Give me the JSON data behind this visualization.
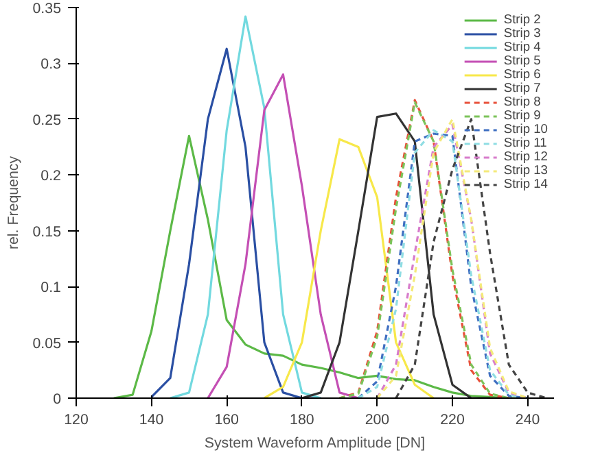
{
  "chart_data": {
    "type": "line",
    "xlabel": "System Waveform Amplitude [DN]",
    "ylabel": "rel. Frequency",
    "xlim": [
      120,
      247
    ],
    "ylim": [
      0,
      0.35
    ],
    "xticks": [
      120,
      140,
      160,
      180,
      200,
      220,
      240
    ],
    "yticks": [
      0,
      0.05,
      0.1,
      0.15,
      0.2,
      0.25,
      0.3,
      0.35
    ],
    "grid": false,
    "legend": "top right",
    "marker": "none",
    "series": [
      {
        "name": "Strip 2",
        "color": "#5cb947",
        "line_style": "solid",
        "x": [
          130,
          135,
          140,
          145,
          150,
          155,
          160,
          165,
          170,
          175,
          180,
          185,
          190,
          195,
          200,
          205,
          210,
          215,
          220,
          225,
          230,
          235,
          240
        ],
        "values": [
          0,
          0.003,
          0.06,
          0.15,
          0.235,
          0.16,
          0.07,
          0.048,
          0.04,
          0.038,
          0.03,
          0.027,
          0.023,
          0.018,
          0.02,
          0.017,
          0.016,
          0.01,
          0.005,
          0.002,
          0.001,
          0,
          0
        ]
      },
      {
        "name": "Strip 3",
        "color": "#2a4fa3",
        "line_style": "solid",
        "x": [
          140,
          145,
          150,
          155,
          160,
          165,
          170,
          175,
          180,
          185
        ],
        "values": [
          0.001,
          0.018,
          0.12,
          0.25,
          0.313,
          0.225,
          0.05,
          0.005,
          0,
          0
        ]
      },
      {
        "name": "Strip 4",
        "color": "#72d9df",
        "line_style": "solid",
        "x": [
          145,
          150,
          155,
          160,
          165,
          170,
          175,
          180,
          185
        ],
        "values": [
          0,
          0.005,
          0.075,
          0.24,
          0.342,
          0.26,
          0.075,
          0.005,
          0
        ]
      },
      {
        "name": "Strip 5",
        "color": "#c44fb4",
        "line_style": "solid",
        "x": [
          155,
          160,
          165,
          170,
          175,
          180,
          185,
          190,
          195
        ],
        "values": [
          0,
          0.028,
          0.12,
          0.258,
          0.29,
          0.19,
          0.075,
          0.005,
          0
        ]
      },
      {
        "name": "Strip 6",
        "color": "#f7e84a",
        "line_style": "solid",
        "x": [
          170,
          175,
          180,
          185,
          190,
          195,
          200,
          205,
          210,
          215
        ],
        "values": [
          0,
          0.01,
          0.05,
          0.15,
          0.232,
          0.225,
          0.18,
          0.05,
          0.012,
          0
        ]
      },
      {
        "name": "Strip 7",
        "color": "#333333",
        "line_style": "solid",
        "x": [
          180,
          185,
          190,
          195,
          200,
          205,
          210,
          215,
          220,
          225,
          230
        ],
        "values": [
          0,
          0.005,
          0.05,
          0.15,
          0.252,
          0.255,
          0.23,
          0.075,
          0.012,
          0,
          0
        ]
      },
      {
        "name": "Strip 8",
        "color": "#e8503a",
        "line_style": "dashed",
        "x": [
          190,
          195,
          200,
          205,
          210,
          215,
          220,
          225,
          230,
          235
        ],
        "values": [
          0,
          0.005,
          0.06,
          0.18,
          0.267,
          0.23,
          0.11,
          0.025,
          0.003,
          0
        ]
      },
      {
        "name": "Strip 9",
        "color": "#7cc35a",
        "line_style": "dashed",
        "x": [
          190,
          195,
          200,
          205,
          210,
          215,
          220,
          225,
          230,
          235
        ],
        "values": [
          0,
          0.004,
          0.055,
          0.17,
          0.265,
          0.23,
          0.115,
          0.03,
          0.004,
          0
        ]
      },
      {
        "name": "Strip 10",
        "color": "#3f6fc1",
        "line_style": "dashed",
        "x": [
          195,
          200,
          205,
          210,
          215,
          220,
          225,
          230,
          235,
          240
        ],
        "values": [
          0,
          0.015,
          0.1,
          0.23,
          0.237,
          0.235,
          0.1,
          0.02,
          0.002,
          0
        ]
      },
      {
        "name": "Strip 11",
        "color": "#8fdde3",
        "line_style": "dashed",
        "x": [
          195,
          200,
          205,
          210,
          215,
          220,
          225,
          230,
          235,
          240
        ],
        "values": [
          0,
          0.01,
          0.08,
          0.22,
          0.24,
          0.23,
          0.11,
          0.025,
          0.003,
          0
        ]
      },
      {
        "name": "Strip 12",
        "color": "#d77ccb",
        "line_style": "dashed",
        "x": [
          200,
          205,
          210,
          215,
          220,
          225,
          230,
          235,
          240
        ],
        "values": [
          0,
          0.03,
          0.13,
          0.225,
          0.245,
          0.16,
          0.04,
          0.005,
          0
        ]
      },
      {
        "name": "Strip 13",
        "color": "#f4ea7a",
        "line_style": "dashed",
        "x": [
          200,
          205,
          210,
          215,
          220,
          225,
          230,
          235,
          240
        ],
        "values": [
          0,
          0.02,
          0.11,
          0.22,
          0.25,
          0.16,
          0.045,
          0.006,
          0
        ]
      },
      {
        "name": "Strip 14",
        "color": "#444444",
        "line_style": "dashed",
        "x": [
          205,
          210,
          215,
          220,
          225,
          230,
          235,
          240,
          245
        ],
        "values": [
          0,
          0.03,
          0.14,
          0.205,
          0.25,
          0.13,
          0.03,
          0.005,
          0
        ]
      }
    ]
  }
}
